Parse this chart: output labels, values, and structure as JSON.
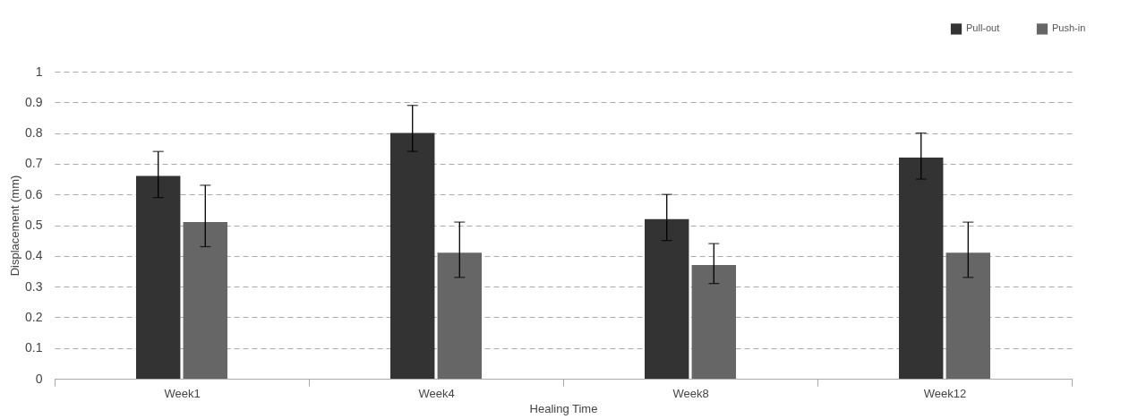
{
  "chart_data": {
    "type": "bar",
    "xlabel": "Healing Time",
    "ylabel": "Displacement (mm)",
    "categories": [
      "Week1",
      "Week4",
      "Week8",
      "Week12"
    ],
    "series": [
      {
        "name": "Pull-out",
        "color": "#333333",
        "values": [
          0.66,
          0.8,
          0.52,
          0.72
        ],
        "errors": [
          [
            0.59,
            0.74
          ],
          [
            0.74,
            0.89
          ],
          [
            0.45,
            0.6
          ],
          [
            0.65,
            0.8
          ]
        ]
      },
      {
        "name": "Push-in",
        "color": "#666666",
        "values": [
          0.51,
          0.41,
          0.37,
          0.41
        ],
        "errors": [
          [
            0.43,
            0.63
          ],
          [
            0.33,
            0.51
          ],
          [
            0.31,
            0.44
          ],
          [
            0.33,
            0.51
          ]
        ]
      }
    ],
    "ylim": [
      0,
      1
    ],
    "yticks": [
      0,
      0.1,
      0.2,
      0.3,
      0.4,
      0.5,
      0.6,
      0.7,
      0.8,
      0.9,
      1
    ],
    "grid": "y",
    "legend": "top right"
  }
}
